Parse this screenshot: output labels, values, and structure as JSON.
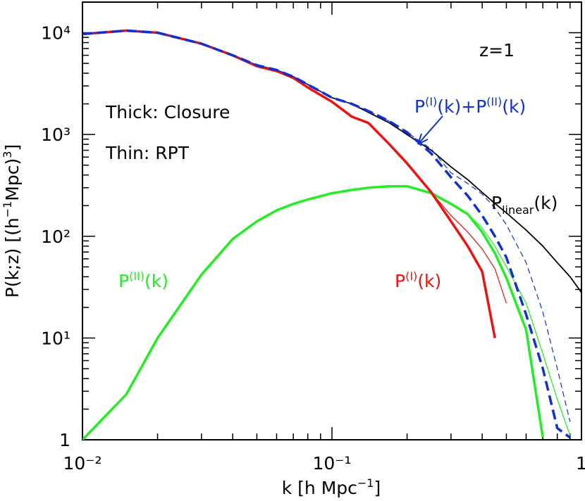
{
  "chart_data": {
    "type": "line",
    "xlog": true,
    "ylog": true,
    "minor_ticks": true,
    "xlim": [
      0.01,
      1
    ],
    "ylim": [
      1,
      20000
    ],
    "xticks": [
      {
        "value": 0.01,
        "label": "10⁻²"
      },
      {
        "value": 0.1,
        "label": "10⁻¹"
      },
      1
    ],
    "yticks": [
      1,
      {
        "value": 10,
        "label": "10¹"
      },
      {
        "value": 100,
        "label": "10²"
      },
      {
        "value": 1000,
        "label": "10³"
      },
      {
        "value": 10000,
        "label": "10⁴"
      }
    ],
    "x_label": [
      {
        "text": "k [h Mpc"
      },
      {
        "text": "−1",
        "pos": "sup"
      },
      {
        "text": "]"
      }
    ],
    "y_label": [
      {
        "text": "P(k;z) [(h"
      },
      {
        "text": "−1",
        "pos": "sup"
      },
      {
        "text": "Mpc)"
      },
      {
        "text": "3",
        "pos": "sup"
      },
      {
        "text": "]"
      }
    ],
    "x": [
      0.01,
      0.015,
      0.02,
      0.03,
      0.04,
      0.05,
      0.06,
      0.07,
      0.08,
      0.1,
      0.12,
      0.14,
      0.17,
      0.2,
      0.25,
      0.3,
      0.35,
      0.4,
      0.45,
      0.5,
      0.6,
      0.7,
      0.8,
      0.9,
      1
    ],
    "series": [
      {
        "color": "#22ee22",
        "width": 1.2,
        "dashed": false,
        "values": [
          1.0,
          2.8,
          10,
          42,
          94,
          140,
          180,
          208,
          230,
          265,
          285,
          300,
          310,
          310,
          265,
          208,
          165,
          120,
          80,
          50,
          22,
          7,
          2.5,
          1.1,
          null
        ]
      },
      {
        "color": "#22ee22",
        "width": 3.5,
        "dashed": false,
        "values": [
          1.0,
          2.8,
          10,
          42,
          94,
          140,
          180,
          208,
          230,
          265,
          285,
          300,
          310,
          310,
          265,
          208,
          165,
          110,
          68,
          39,
          12,
          1.05,
          null,
          null,
          null
        ]
      },
      {
        "color": "#000000",
        "width": 1.8,
        "dashed": false,
        "values": [
          9700,
          10500,
          10000,
          7800,
          6000,
          4800,
          4300,
          3700,
          3100,
          2300,
          2000,
          1650,
          1300,
          1000,
          700,
          480,
          360,
          270,
          210,
          170,
          115,
          80,
          55,
          40,
          28
        ]
      },
      {
        "color": "#ee1111",
        "width": 1.2,
        "dashed": false,
        "values": [
          9700,
          10500,
          10000,
          7800,
          6000,
          4700,
          4200,
          3600,
          2900,
          2100,
          1500,
          1300,
          800,
          520,
          270,
          160,
          110,
          75,
          48,
          22,
          null,
          null,
          null,
          null,
          null
        ]
      },
      {
        "color": "#ee1111",
        "width": 3.5,
        "dashed": false,
        "values": [
          9700,
          10500,
          10000,
          7800,
          6000,
          4700,
          4200,
          3600,
          2900,
          2100,
          1500,
          1300,
          800,
          520,
          270,
          140,
          80,
          45,
          10,
          null,
          null,
          null,
          null,
          null,
          null
        ]
      },
      {
        "color": "#1030d0",
        "width": 1.2,
        "dashed": true,
        "values": [
          9700,
          10500,
          10000,
          7800,
          6000,
          4800,
          4300,
          3700,
          3100,
          2300,
          2000,
          1700,
          1350,
          1050,
          720,
          420,
          330,
          260,
          190,
          130,
          55,
          18,
          5,
          1.5,
          null
        ]
      },
      {
        "color": "#1030d0",
        "width": 3.5,
        "dashed": true,
        "values": [
          9700,
          10500,
          10000,
          7800,
          6000,
          4800,
          4300,
          3700,
          3100,
          2300,
          2000,
          1700,
          1350,
          1050,
          650,
          380,
          250,
          160,
          100,
          62,
          17,
          5,
          1.3,
          1.05,
          null
        ]
      }
    ],
    "annotations": [
      {
        "color": "#000000",
        "size": "large",
        "segments": [
          {
            "text": "z=1"
          }
        ]
      },
      {
        "color": "#000000",
        "segments": [
          {
            "text": "Thick: Closure"
          }
        ]
      },
      {
        "color": "#000000",
        "segments": [
          {
            "text": "Thin: RPT"
          }
        ]
      },
      {
        "color": "#1030d0",
        "segments": [
          {
            "text": "P"
          },
          {
            "text": "(I)",
            "pos": "sup"
          },
          {
            "text": "(k)+P"
          },
          {
            "text": "(II)",
            "pos": "sup"
          },
          {
            "text": "(k)"
          }
        ]
      },
      {
        "color": "#000000",
        "segments": [
          {
            "text": "P"
          },
          {
            "text": "linear",
            "pos": "sub"
          },
          {
            "text": "(k)"
          }
        ]
      },
      {
        "color": "#ee1111",
        "segments": [
          {
            "text": "P"
          },
          {
            "text": "(I)",
            "pos": "sup"
          },
          {
            "text": "(k)"
          }
        ]
      },
      {
        "color": "#22ee22",
        "segments": [
          {
            "text": "P"
          },
          {
            "text": "(II)",
            "pos": "sup"
          },
          {
            "text": "(k)"
          }
        ]
      }
    ]
  }
}
